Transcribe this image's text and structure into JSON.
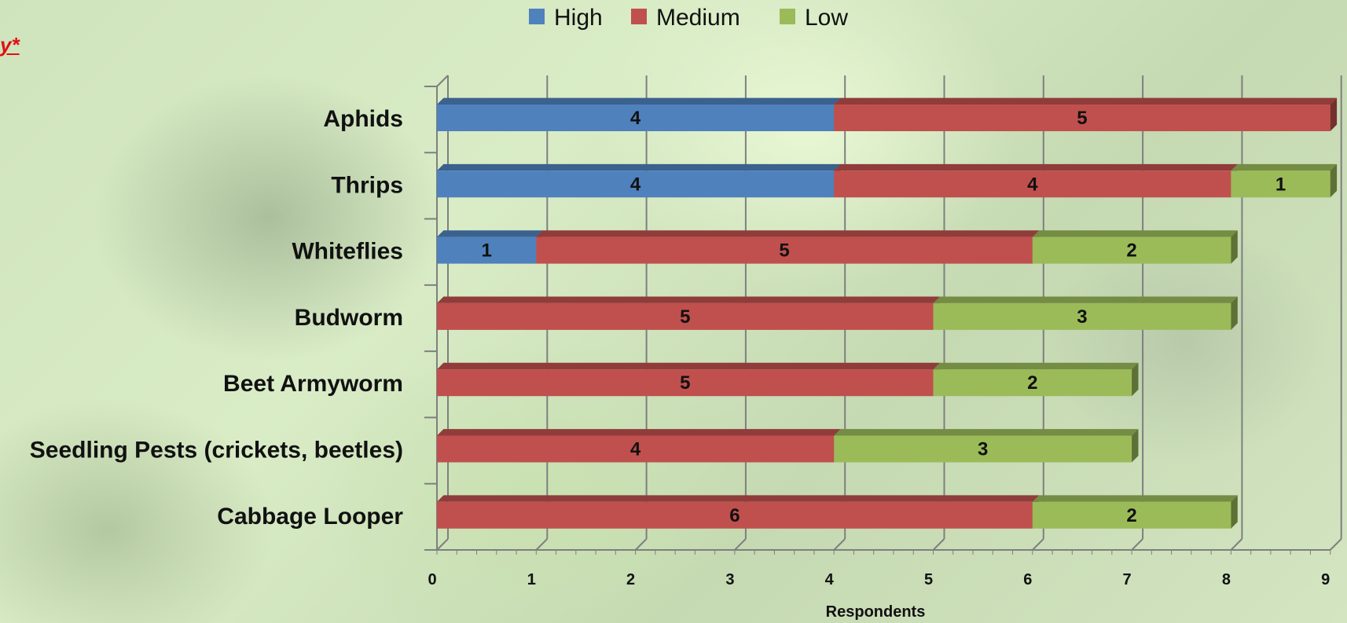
{
  "corner_text": "y*",
  "chart_data": {
    "type": "bar",
    "orientation": "horizontal",
    "stacked": true,
    "three_d": true,
    "categories": [
      "Aphids",
      "Thrips",
      "Whiteflies",
      "Budworm",
      "Beet Armyworm",
      "Seedling Pests (crickets, beetles)",
      "Cabbage Looper"
    ],
    "series": [
      {
        "name": "High",
        "color": "#4f81bd",
        "values": [
          4,
          4,
          1,
          0,
          0,
          0,
          0
        ]
      },
      {
        "name": "Medium",
        "color": "#c0504d",
        "values": [
          5,
          4,
          5,
          5,
          5,
          4,
          6
        ]
      },
      {
        "name": "Low",
        "color": "#9bbb59",
        "values": [
          0,
          1,
          2,
          3,
          2,
          3,
          2
        ]
      }
    ],
    "xlabel": "Respondents",
    "ylabel": "",
    "xlim": [
      0,
      9
    ],
    "x_ticks": [
      "0",
      "1",
      "2",
      "3",
      "4",
      "5",
      "6",
      "7",
      "8",
      "9"
    ],
    "grid": true,
    "legend": "top"
  }
}
